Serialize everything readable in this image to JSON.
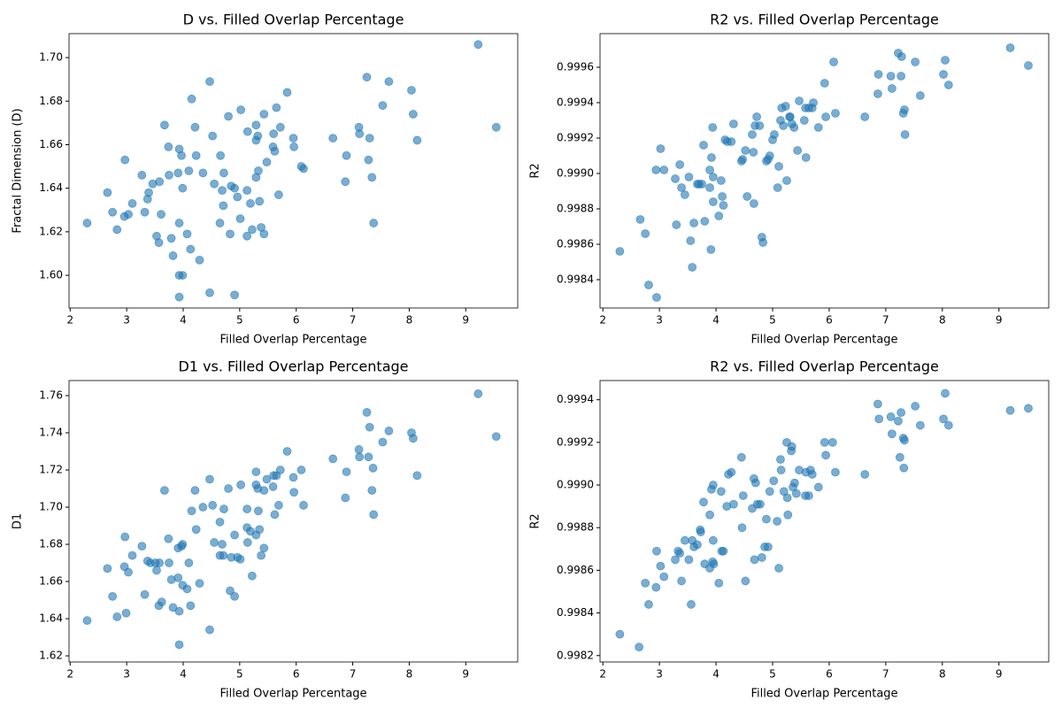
{
  "chart_data": [
    {
      "type": "scatter",
      "title": "D vs. Filled Overlap Percentage",
      "xlabel": "Filled Overlap Percentage",
      "ylabel": "Fractal Dimension (D)",
      "color": "#1f77b4",
      "x": [
        2.3,
        2.66,
        2.75,
        2.83,
        2.97,
        2.96,
        3.03,
        3.1,
        3.27,
        3.32,
        3.37,
        3.39,
        3.46,
        3.53,
        3.57,
        3.58,
        3.61,
        3.67,
        3.74,
        3.75,
        3.79,
        3.82,
        3.91,
        3.93,
        3.93,
        3.93,
        3.93,
        3.97,
        3.99,
        3.99,
        4.07,
        4.1,
        4.13,
        4.15,
        4.21,
        4.23,
        4.29,
        4.35,
        4.47,
        4.47,
        4.52,
        4.55,
        4.65,
        4.66,
        4.69,
        4.71,
        4.72,
        4.8,
        4.83,
        4.85,
        4.91,
        4.91,
        4.96,
        5.01,
        5.02,
        5.13,
        5.13,
        5.14,
        5.19,
        5.22,
        5.29,
        5.29,
        5.29,
        5.32,
        5.33,
        5.35,
        5.38,
        5.43,
        5.43,
        5.48,
        5.59,
        5.62,
        5.6,
        5.65,
        5.69,
        5.72,
        5.84,
        5.95,
        5.96,
        6.09,
        6.13,
        6.65,
        6.87,
        6.89,
        7.11,
        7.12,
        7.25,
        7.28,
        7.3,
        7.34,
        7.37,
        7.53,
        7.64,
        8.04,
        8.07,
        8.14,
        9.22,
        9.54
      ],
      "values": [
        1.624,
        1.638,
        1.629,
        1.621,
        1.653,
        1.627,
        1.628,
        1.633,
        1.646,
        1.629,
        1.635,
        1.638,
        1.642,
        1.618,
        1.615,
        1.643,
        1.628,
        1.669,
        1.659,
        1.646,
        1.617,
        1.609,
        1.647,
        1.658,
        1.624,
        1.6,
        1.59,
        1.655,
        1.64,
        1.6,
        1.619,
        1.648,
        1.612,
        1.681,
        1.668,
        1.655,
        1.607,
        1.647,
        1.689,
        1.592,
        1.664,
        1.642,
        1.624,
        1.655,
        1.639,
        1.632,
        1.647,
        1.673,
        1.619,
        1.641,
        1.591,
        1.64,
        1.636,
        1.626,
        1.676,
        1.618,
        1.639,
        1.666,
        1.633,
        1.621,
        1.645,
        1.669,
        1.662,
        1.664,
        1.648,
        1.634,
        1.622,
        1.619,
        1.674,
        1.652,
        1.659,
        1.657,
        1.665,
        1.677,
        1.637,
        1.668,
        1.684,
        1.663,
        1.659,
        1.65,
        1.649,
        1.663,
        1.643,
        1.655,
        1.668,
        1.665,
        1.691,
        1.653,
        1.663,
        1.645,
        1.624,
        1.678,
        1.689,
        1.685,
        1.674,
        1.662,
        1.706,
        1.668
      ],
      "xlim": [
        1.98,
        9.92
      ],
      "ylim": [
        1.585,
        1.711
      ],
      "xticks": [
        2,
        3,
        4,
        5,
        6,
        7,
        8,
        9
      ],
      "yticks": [
        {
          "value": 1.6,
          "label": "1.60"
        },
        1.62,
        1.64,
        1.66,
        1.68,
        {
          "value": 1.7,
          "label": "1.70"
        }
      ]
    },
    {
      "type": "scatter",
      "title": "R2 vs. Filled Overlap Percentage",
      "xlabel": "Filled Overlap Percentage",
      "ylabel": "R2",
      "color": "#1f77b4",
      "x": [
        2.3,
        2.66,
        2.75,
        2.81,
        2.94,
        2.95,
        3.02,
        3.08,
        3.28,
        3.3,
        3.36,
        3.39,
        3.45,
        3.52,
        3.55,
        3.58,
        3.61,
        3.67,
        3.7,
        3.75,
        3.78,
        3.8,
        3.89,
        3.89,
        3.91,
        3.92,
        3.94,
        3.95,
        3.95,
        4.05,
        4.09,
        4.11,
        4.13,
        4.16,
        4.2,
        4.27,
        4.31,
        4.45,
        4.47,
        4.52,
        4.55,
        4.64,
        4.66,
        4.69,
        4.67,
        4.72,
        4.77,
        4.81,
        4.83,
        4.89,
        4.92,
        4.95,
        5.0,
        5.03,
        5.09,
        5.11,
        5.16,
        5.14,
        5.19,
        5.23,
        5.25,
        5.3,
        5.31,
        5.34,
        5.38,
        5.44,
        5.47,
        5.56,
        5.58,
        5.59,
        5.64,
        5.7,
        5.72,
        5.81,
        5.92,
        5.94,
        6.08,
        6.11,
        6.63,
        6.86,
        6.87,
        7.09,
        7.11,
        7.22,
        7.27,
        7.28,
        7.31,
        7.33,
        7.34,
        7.52,
        7.61,
        8.02,
        8.05,
        8.11,
        9.2,
        9.52
      ],
      "values": [
        0.99856,
        0.99874,
        0.99866,
        0.99837,
        0.99902,
        0.9983,
        0.99914,
        0.99902,
        0.99897,
        0.99871,
        0.99905,
        0.99892,
        0.99888,
        0.99898,
        0.99862,
        0.99847,
        0.99872,
        0.99894,
        0.99894,
        0.99894,
        0.99916,
        0.99873,
        0.99902,
        0.99892,
        0.99857,
        0.99909,
        0.99926,
        0.99898,
        0.99884,
        0.99876,
        0.99896,
        0.99887,
        0.99882,
        0.99919,
        0.99918,
        0.99918,
        0.99928,
        0.99907,
        0.99908,
        0.99913,
        0.99887,
        0.99922,
        0.99912,
        0.99927,
        0.99883,
        0.99932,
        0.99927,
        0.99864,
        0.99861,
        0.99907,
        0.99908,
        0.9991,
        0.99919,
        0.99922,
        0.99892,
        0.99904,
        0.99937,
        0.9993,
        0.99927,
        0.99938,
        0.99896,
        0.99932,
        0.99932,
        0.99928,
        0.99926,
        0.99913,
        0.99941,
        0.9993,
        0.99937,
        0.99909,
        0.99937,
        0.99937,
        0.9994,
        0.99926,
        0.99951,
        0.99932,
        0.99963,
        0.99934,
        0.99932,
        0.99945,
        0.99956,
        0.99955,
        0.99948,
        0.99968,
        0.99955,
        0.99966,
        0.99934,
        0.99936,
        0.99922,
        0.99963,
        0.99944,
        0.99956,
        0.99964,
        0.9995,
        0.99971,
        0.99961
      ],
      "xlim": [
        1.95,
        9.88
      ],
      "ylim": [
        0.99824,
        0.99979
      ],
      "xticks": [
        2,
        3,
        4,
        5,
        6,
        7,
        8,
        9
      ],
      "yticks": [
        0.9984,
        0.9986,
        0.9988,
        {
          "value": 0.999,
          "label": "0.9990"
        },
        0.9992,
        0.9994,
        0.9996
      ]
    },
    {
      "type": "scatter",
      "title": "D1 vs. Filled Overlap Percentage",
      "xlabel": "Filled Overlap Percentage",
      "ylabel": "D1",
      "color": "#1f77b4",
      "x": [
        2.3,
        2.66,
        2.75,
        2.83,
        2.97,
        2.96,
        2.99,
        3.03,
        3.1,
        3.27,
        3.32,
        3.37,
        3.42,
        3.51,
        3.53,
        3.57,
        3.58,
        3.62,
        3.67,
        3.74,
        3.75,
        3.79,
        3.82,
        3.91,
        3.91,
        3.93,
        3.93,
        3.97,
        3.99,
        3.99,
        4.07,
        4.1,
        4.13,
        4.15,
        4.21,
        4.23,
        4.29,
        4.35,
        4.47,
        4.47,
        4.52,
        4.55,
        4.65,
        4.65,
        4.69,
        4.71,
        4.72,
        4.8,
        4.83,
        4.85,
        4.91,
        4.91,
        4.96,
        5.01,
        5.02,
        5.13,
        5.13,
        5.14,
        5.19,
        5.22,
        5.29,
        5.29,
        5.29,
        5.32,
        5.33,
        5.35,
        5.38,
        5.43,
        5.43,
        5.48,
        5.59,
        5.62,
        5.6,
        5.65,
        5.69,
        5.72,
        5.84,
        5.95,
        5.96,
        6.09,
        6.13,
        6.65,
        6.87,
        6.89,
        7.11,
        7.12,
        7.25,
        7.28,
        7.3,
        7.34,
        7.36,
        7.37,
        7.53,
        7.64,
        8.04,
        8.07,
        8.14,
        9.22,
        9.54
      ],
      "values": [
        1.639,
        1.667,
        1.652,
        1.641,
        1.684,
        1.668,
        1.643,
        1.665,
        1.674,
        1.679,
        1.653,
        1.671,
        1.67,
        1.67,
        1.666,
        1.647,
        1.67,
        1.649,
        1.709,
        1.683,
        1.67,
        1.661,
        1.646,
        1.662,
        1.678,
        1.644,
        1.626,
        1.679,
        1.658,
        1.68,
        1.656,
        1.67,
        1.647,
        1.698,
        1.709,
        1.688,
        1.659,
        1.7,
        1.715,
        1.634,
        1.701,
        1.681,
        1.692,
        1.674,
        1.68,
        1.674,
        1.699,
        1.71,
        1.655,
        1.673,
        1.652,
        1.685,
        1.673,
        1.672,
        1.712,
        1.699,
        1.689,
        1.681,
        1.687,
        1.663,
        1.685,
        1.719,
        1.712,
        1.71,
        1.698,
        1.688,
        1.674,
        1.678,
        1.709,
        1.715,
        1.711,
        1.696,
        1.717,
        1.717,
        1.701,
        1.72,
        1.73,
        1.716,
        1.708,
        1.72,
        1.701,
        1.726,
        1.705,
        1.719,
        1.731,
        1.727,
        1.751,
        1.727,
        1.743,
        1.709,
        1.721,
        1.696,
        1.735,
        1.741,
        1.74,
        1.737,
        1.717,
        1.761,
        1.738
      ],
      "xlim": [
        1.98,
        9.92
      ],
      "ylim": [
        1.6167,
        1.7681
      ],
      "xticks": [
        2,
        3,
        4,
        5,
        6,
        7,
        8,
        9
      ],
      "yticks": [
        1.62,
        1.64,
        1.66,
        1.68,
        {
          "value": 1.7,
          "label": "1.70"
        },
        1.72,
        1.74,
        1.76
      ]
    },
    {
      "type": "scatter",
      "title": "R2 vs. Filled Overlap Percentage",
      "xlabel": "Filled Overlap Percentage",
      "ylabel": "R2",
      "color": "#1f77b4",
      "x": [
        2.3,
        2.64,
        2.75,
        2.81,
        2.94,
        2.95,
        3.02,
        3.08,
        3.28,
        3.33,
        3.36,
        3.39,
        3.45,
        3.52,
        3.58,
        3.56,
        3.61,
        3.67,
        3.72,
        3.73,
        3.78,
        3.8,
        3.89,
        3.89,
        3.92,
        3.94,
        3.95,
        3.95,
        3.96,
        4.05,
        4.09,
        4.1,
        4.13,
        4.19,
        4.22,
        4.27,
        4.31,
        4.45,
        4.46,
        4.52,
        4.48,
        4.64,
        4.67,
        4.7,
        4.68,
        4.73,
        4.78,
        4.81,
        4.86,
        4.89,
        4.92,
        4.95,
        5.02,
        5.08,
        5.11,
        5.14,
        5.15,
        5.2,
        5.25,
        5.26,
        5.27,
        5.33,
        5.34,
        5.36,
        5.39,
        5.47,
        5.42,
        5.58,
        5.59,
        5.64,
        5.67,
        5.7,
        5.81,
        5.92,
        5.94,
        6.06,
        6.11,
        6.63,
        6.86,
        6.88,
        7.11,
        7.09,
        7.22,
        7.27,
        7.25,
        7.31,
        7.33,
        7.32,
        7.52,
        7.61,
        8.02,
        8.05,
        8.11,
        9.2,
        9.52
      ],
      "values": [
        0.9983,
        0.99824,
        0.99854,
        0.99844,
        0.99852,
        0.99869,
        0.99862,
        0.99857,
        0.99865,
        0.99869,
        0.99868,
        0.99855,
        0.99874,
        0.99865,
        0.99874,
        0.99844,
        0.99871,
        0.99872,
        0.99879,
        0.99878,
        0.99892,
        0.99863,
        0.99886,
        0.99861,
        0.99898,
        0.99864,
        0.999,
        0.99874,
        0.99863,
        0.99854,
        0.99897,
        0.99869,
        0.99869,
        0.9989,
        0.99905,
        0.99906,
        0.99891,
        0.99913,
        0.9988,
        0.99855,
        0.99895,
        0.99889,
        0.99903,
        0.99901,
        0.99865,
        0.99891,
        0.99891,
        0.99866,
        0.99871,
        0.99884,
        0.99871,
        0.99897,
        0.99902,
        0.99883,
        0.99861,
        0.99912,
        0.99907,
        0.99897,
        0.9992,
        0.99894,
        0.99886,
        0.99916,
        0.99918,
        0.99899,
        0.99901,
        0.99907,
        0.99896,
        0.99895,
        0.99906,
        0.99895,
        0.99907,
        0.99905,
        0.99899,
        0.9992,
        0.99914,
        0.9992,
        0.99906,
        0.99905,
        0.99938,
        0.99931,
        0.99924,
        0.99932,
        0.9993,
        0.99934,
        0.99913,
        0.99922,
        0.99921,
        0.99908,
        0.99937,
        0.99928,
        0.99931,
        0.99943,
        0.99928,
        0.99935,
        0.99936
      ],
      "xlim": [
        1.95,
        9.88
      ],
      "ylim": [
        0.99817,
        0.99949
      ],
      "xticks": [
        2,
        3,
        4,
        5,
        6,
        7,
        8,
        9
      ],
      "yticks": [
        0.9982,
        0.9984,
        0.9986,
        0.9988,
        {
          "value": 0.999,
          "label": "0.9990"
        },
        0.9992,
        0.9994
      ]
    }
  ]
}
